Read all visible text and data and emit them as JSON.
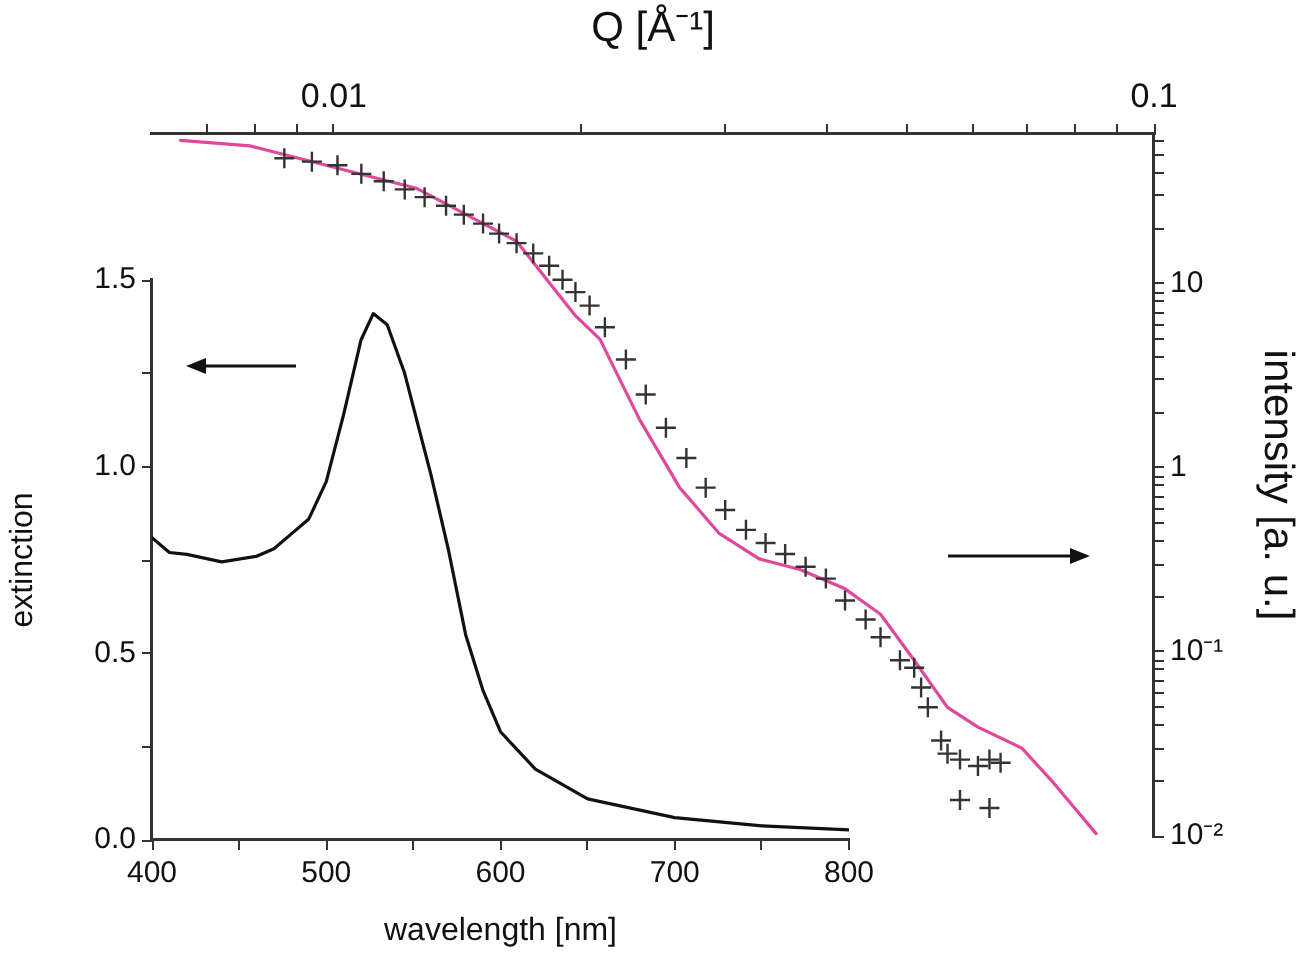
{
  "chart_data": [
    {
      "type": "line",
      "xlabel": "wavelength [nm]",
      "ylabel": "extinction",
      "color": "#111111",
      "x": [
        400,
        410,
        420,
        440,
        460,
        470,
        480,
        490,
        500,
        510,
        520,
        527,
        535,
        545,
        555,
        560,
        570,
        580,
        590,
        600,
        620,
        650,
        700,
        750,
        800
      ],
      "values": [
        0.81,
        0.77,
        0.765,
        0.745,
        0.76,
        0.78,
        0.82,
        0.86,
        0.96,
        1.14,
        1.34,
        1.41,
        1.38,
        1.25,
        1.07,
        0.98,
        0.78,
        0.55,
        0.4,
        0.29,
        0.19,
        0.11,
        0.06,
        0.038,
        0.027
      ],
      "xlim": [
        400,
        800
      ],
      "ylim": [
        0,
        1.5
      ],
      "xticks": [
        400,
        {
          "value": 450,
          "label": null
        },
        500,
        {
          "value": 550,
          "label": null
        },
        600,
        {
          "value": 650,
          "label": null
        },
        700,
        {
          "value": 750,
          "label": null
        },
        800
      ],
      "yticks": [
        {
          "value": 0,
          "label": "0.0"
        },
        {
          "value": 0.25,
          "label": null
        },
        0.5,
        {
          "value": 0.75,
          "label": null
        },
        {
          "value": 1,
          "label": "1.0"
        },
        {
          "value": 1.25,
          "label": null
        },
        1.5
      ],
      "grid": false,
      "legend": false
    },
    {
      "type": "scatter",
      "xlabel": "Q [Å⁻¹]",
      "ylabel": "intensity [a. u.]",
      "log": "xy",
      "xlim": [
        0.006,
        0.1
      ],
      "ylim": [
        0.01,
        65
      ],
      "xticks": [
        {
          "value": 0.007,
          "label": null
        },
        {
          "value": 0.008,
          "label": null
        },
        {
          "value": 0.009,
          "label": null
        },
        0.01,
        {
          "value": 0.02,
          "label": null
        },
        {
          "value": 0.03,
          "label": null
        },
        {
          "value": 0.04,
          "label": null
        },
        {
          "value": 0.05,
          "label": null
        },
        {
          "value": 0.06,
          "label": null
        },
        {
          "value": 0.07,
          "label": null
        },
        {
          "value": 0.08,
          "label": null
        },
        {
          "value": 0.09,
          "label": null
        },
        0.1
      ],
      "yticks": [
        {
          "value": 0.01,
          "label": "10⁻²"
        },
        {
          "value": 0.02,
          "label": null
        },
        {
          "value": 0.03,
          "label": null
        },
        {
          "value": 0.04,
          "label": null
        },
        {
          "value": 0.05,
          "label": null
        },
        {
          "value": 0.06,
          "label": null
        },
        {
          "value": 0.07,
          "label": null
        },
        {
          "value": 0.08,
          "label": null
        },
        {
          "value": 0.09,
          "label": null
        },
        {
          "value": 0.1,
          "label": "10⁻¹"
        },
        {
          "value": 0.2,
          "label": null
        },
        {
          "value": 0.3,
          "label": null
        },
        {
          "value": 0.4,
          "label": null
        },
        {
          "value": 0.5,
          "label": null
        },
        {
          "value": 0.6,
          "label": null
        },
        {
          "value": 0.7,
          "label": null
        },
        {
          "value": 0.8,
          "label": null
        },
        {
          "value": 0.9,
          "label": null
        },
        1,
        {
          "value": 2,
          "label": null
        },
        {
          "value": 3,
          "label": null
        },
        {
          "value": 4,
          "label": null
        },
        {
          "value": 5,
          "label": null
        },
        {
          "value": 6,
          "label": null
        },
        {
          "value": 7,
          "label": null
        },
        {
          "value": 8,
          "label": null
        },
        {
          "value": 9,
          "label": null
        },
        10,
        {
          "value": 20,
          "label": null
        },
        {
          "value": 30,
          "label": null
        },
        {
          "value": 40,
          "label": null
        },
        {
          "value": 50,
          "label": null
        },
        {
          "value": 60,
          "label": null
        }
      ],
      "grid": false,
      "legend": false,
      "series": [
        {
          "marker": "cross",
          "color": "#333333",
          "x": [
            0.0087,
            0.0094,
            0.0101,
            0.0108,
            0.0115,
            0.0122,
            0.0129,
            0.0137,
            0.0144,
            0.0152,
            0.0159,
            0.0167,
            0.0175,
            0.0183,
            0.019,
            0.0197,
            0.0205,
            0.0214,
            0.0227,
            0.024,
            0.0254,
            0.0269,
            0.0284,
            0.03,
            0.0318,
            0.0336,
            0.0355,
            0.0376,
            0.0398,
            0.042,
            0.0445,
            0.0464,
            0.049,
            0.051,
            0.052,
            0.053,
            0.055,
            0.056,
            0.058,
            0.061,
            0.063,
            0.065,
            0.058,
            0.063
          ],
          "values": [
            48,
            46,
            44,
            39.5,
            36,
            32.5,
            29.5,
            26.5,
            23.7,
            21.2,
            18.7,
            16.6,
            14.6,
            12.5,
            10.5,
            9,
            7.6,
            5.8,
            3.87,
            2.5,
            1.65,
            1.13,
            0.78,
            0.59,
            0.46,
            0.39,
            0.34,
            0.29,
            0.25,
            0.19,
            0.15,
            0.12,
            0.09,
            0.082,
            0.064,
            0.05,
            0.033,
            0.028,
            0.026,
            0.024,
            0.026,
            0.025,
            0.0157,
            0.0142
          ]
        },
        {
          "type": "line",
          "marker": "none",
          "color": "#e0489a",
          "x": [
            0.0065,
            0.0079,
            0.0126,
            0.0167,
            0.0197,
            0.0211,
            0.0236,
            0.0264,
            0.0295,
            0.033,
            0.037,
            0.042,
            0.0464,
            0.051,
            0.056,
            0.061,
            0.069,
            0.075,
            0.085
          ],
          "values": [
            60,
            56,
            33,
            17,
            6.7,
            5,
            1.82,
            0.78,
            0.44,
            0.32,
            0.28,
            0.22,
            0.16,
            0.09,
            0.05,
            0.039,
            0.03,
            0.02,
            0.0103
          ]
        }
      ]
    }
  ]
}
